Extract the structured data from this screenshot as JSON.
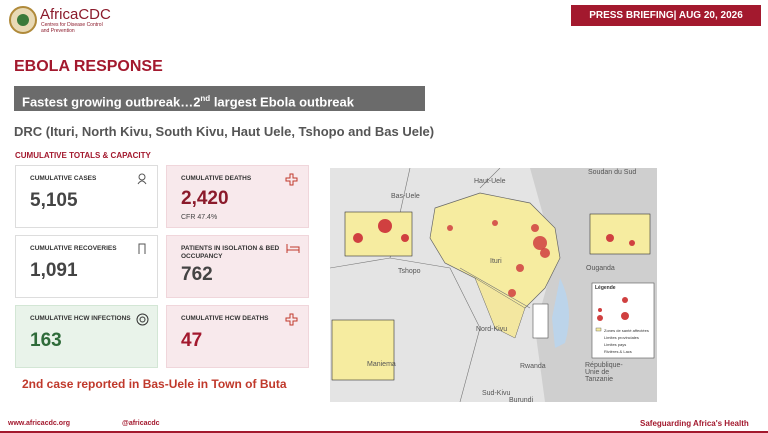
{
  "header": {
    "logo_name": "AfricaCDC",
    "logo_sub": "Centres for Disease Control and Prevention",
    "briefing": "PRESS BRIEFING| AUG 20, 2026"
  },
  "title": "EBOLA RESPONSE",
  "banner": {
    "before": "Fastest growing outbreak…2",
    "sup": "nd",
    "after": " largest Ebola outbreak"
  },
  "subtitle": "DRC (Ituri, North Kivu, South Kivu, Haut Uele,  Tshopo and Bas Uele)",
  "section": "CUMULATIVE TOTALS & CAPACITY",
  "cards": [
    {
      "label": "CUMULATIVE CASES",
      "value": "5,105"
    },
    {
      "label": "CUMULATIVE DEATHS",
      "value": "2,420",
      "note": "CFR 47.4%"
    },
    {
      "label": "CUMULATIVE RECOVERIES",
      "value": "1,091"
    },
    {
      "label": "PATIENTS IN ISOLATION & BED OCCUPANCY",
      "value": "762"
    },
    {
      "label": "CUMULATIVE HCW INFECTIONS",
      "value": "163"
    },
    {
      "label": "CUMULATIVE  HCW DEATHS",
      "value": "47"
    }
  ],
  "note": "2nd case reported in Bas-Uele in Town of Buta",
  "map": {
    "labels": [
      "Soudan du Sud",
      "Bas-Uele",
      "Haut-Uele",
      "Tshopo",
      "Ituri",
      "Ouganda",
      "Nord-Kivu",
      "Maniema",
      "Rwanda",
      "Sud-Kivu",
      "Burundi",
      "République-Unie de Tanzanie"
    ],
    "legend": {
      "title": "Légende",
      "items": [
        "Zones de santé affectées",
        "Limites provinciales",
        "Limites pays",
        "Rivières & Lacs"
      ]
    }
  },
  "footer": {
    "website": "www.africacdc.org",
    "social": "@africacdc",
    "tagline": "Safeguarding Africa's Health"
  }
}
